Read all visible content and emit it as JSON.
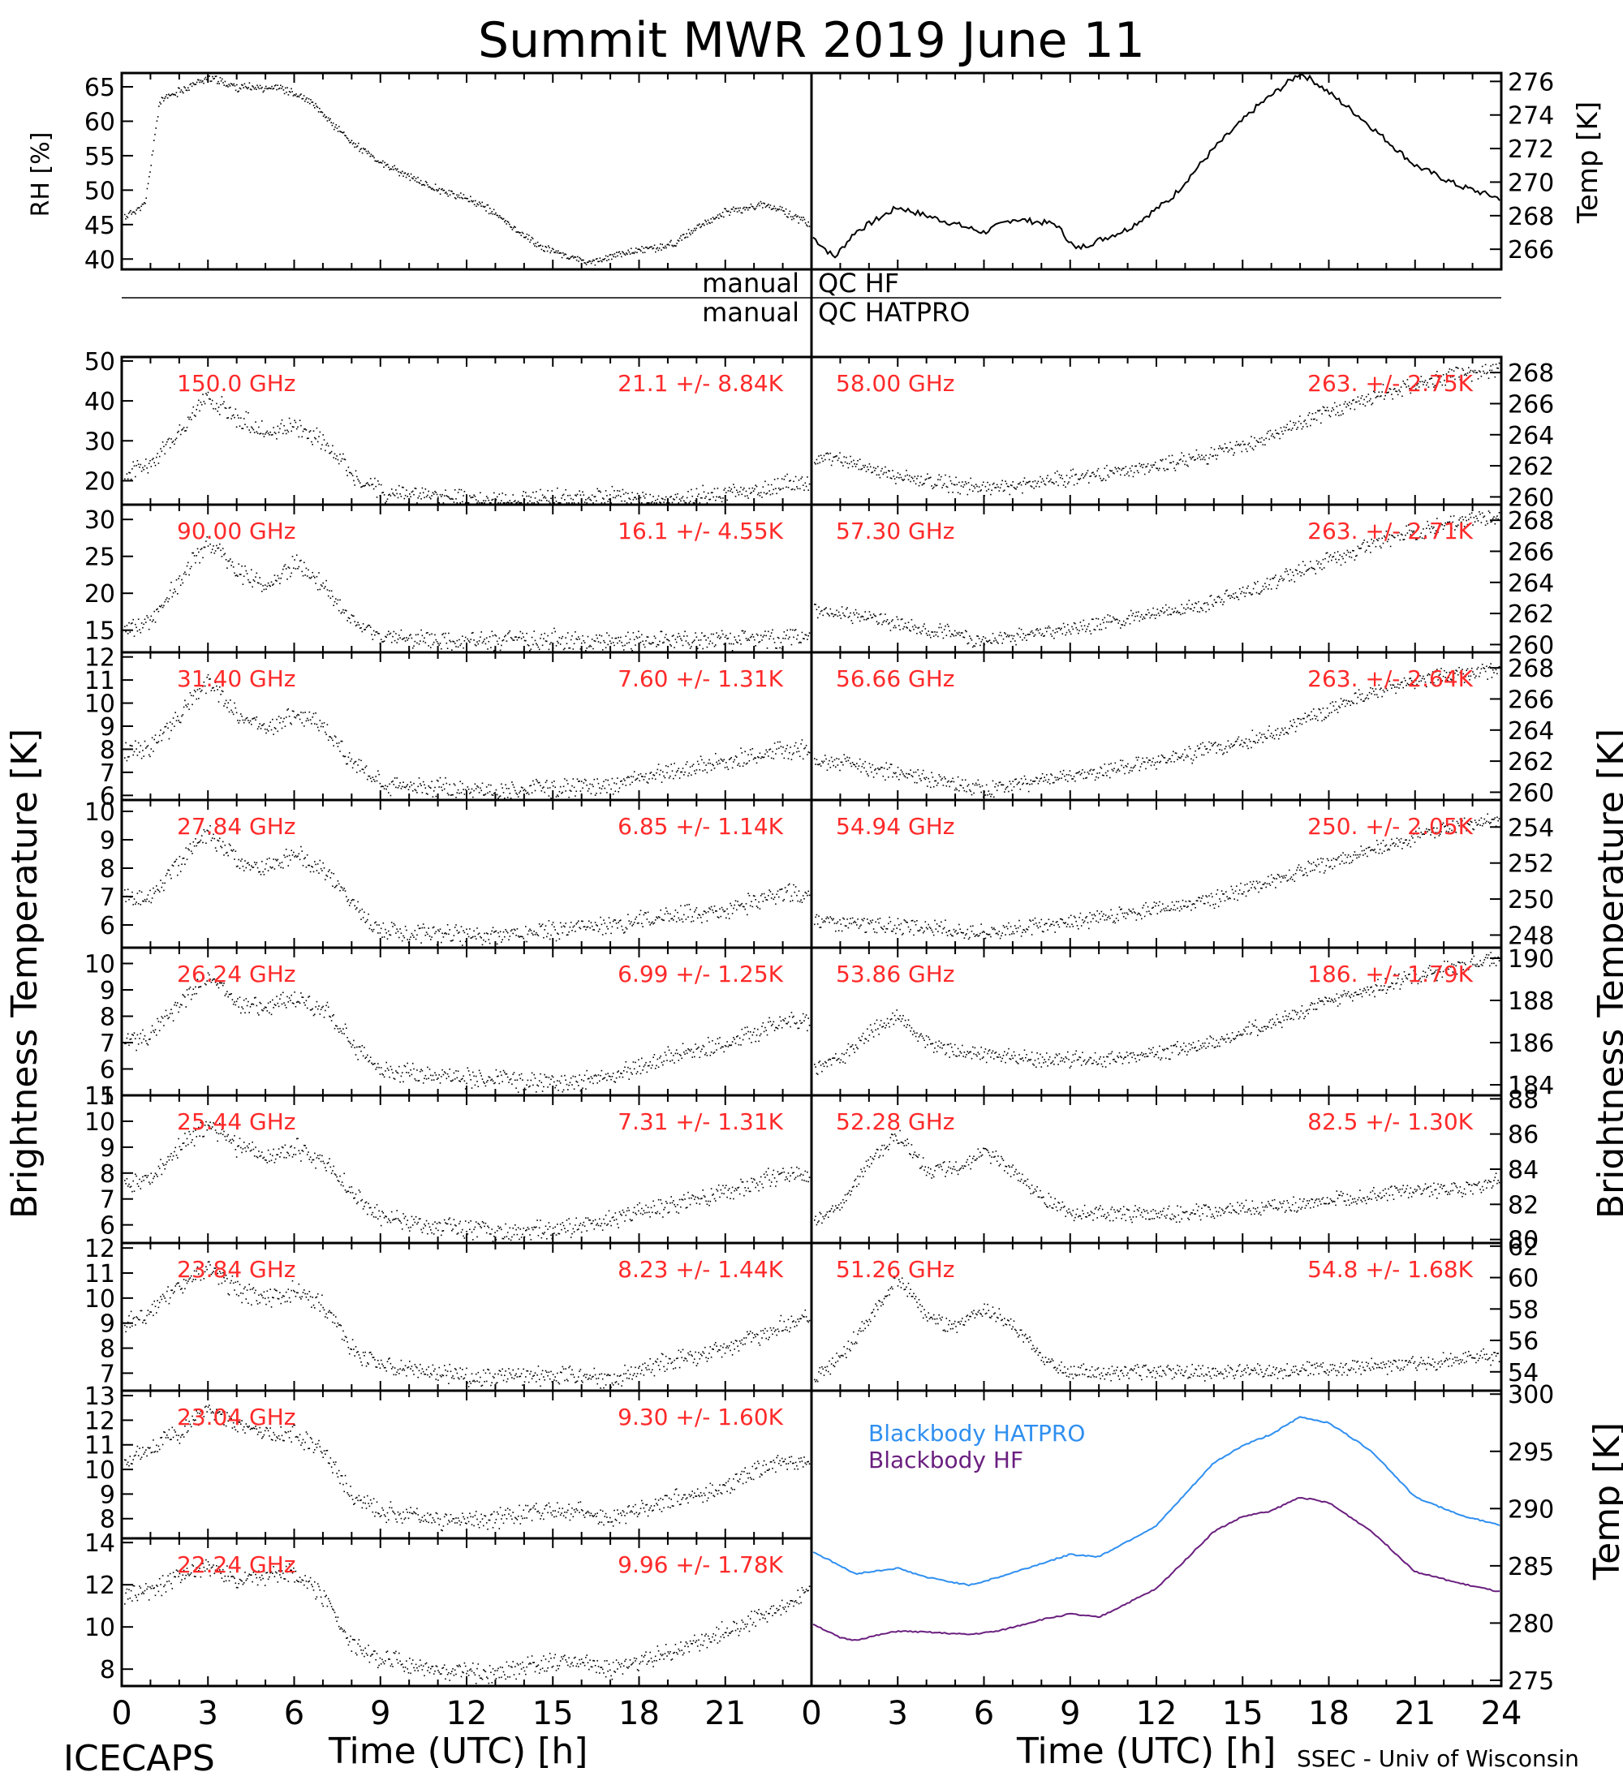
{
  "title": "Summit MWR 2019 June 11",
  "footer": {
    "left": "ICECAPS",
    "right": "SSEC - Univ of Wisconsin",
    "xlabel": "Time (UTC) [h]"
  },
  "axes": {
    "left_bt_label": "Brightness Temperature [K]",
    "right_bt_label": "Brightness Temperature [K]",
    "rh_label": "RH [%]",
    "temp_label": "Temp [K]",
    "bb_temp_label": "Temp [K]"
  },
  "qc": {
    "hf": {
      "left": "manual",
      "right": "QC HF"
    },
    "hatpro": {
      "left": "manual",
      "right": "QC HATPRO"
    }
  },
  "x_ticks": [
    "0",
    "3",
    "6",
    "9",
    "12",
    "15",
    "18",
    "21",
    "24"
  ],
  "chart_data": [
    {
      "type": "scatter",
      "id": "rh",
      "ylabel": "RH [%]",
      "ylim": [
        38.5,
        67
      ],
      "yticks": [
        40,
        45,
        50,
        55,
        60,
        65
      ],
      "x": [
        0,
        0.8,
        1.3,
        3,
        4,
        5.5,
        6.5,
        8,
        9,
        10.5,
        12.5,
        14.5,
        16.2,
        17.5,
        19,
        21,
        22.5,
        24
      ],
      "y": [
        46,
        48,
        63,
        66.5,
        65,
        65,
        63,
        57,
        54,
        51,
        48,
        42,
        39.5,
        41,
        42,
        47,
        48,
        45
      ]
    },
    {
      "type": "line",
      "id": "temp",
      "ylabel": "Temp [K]",
      "ylim": [
        264.8,
        276.5
      ],
      "yticks": [
        266,
        268,
        270,
        272,
        274,
        276
      ],
      "x": [
        0,
        0.8,
        1.5,
        3,
        5,
        6,
        7,
        8.5,
        9.2,
        11,
        12.5,
        14,
        15.5,
        17,
        17.5,
        19,
        21,
        22.5,
        24
      ],
      "y": [
        266.8,
        265.5,
        267,
        268.5,
        267.5,
        267,
        267.8,
        267.5,
        266,
        267.2,
        269,
        272,
        274.5,
        276.5,
        276,
        274,
        271,
        269.8,
        269
      ]
    },
    {
      "type": "scatter",
      "id": "f150",
      "side": "left",
      "label": "150.0 GHz",
      "stat": "21.1 +/-  8.84K",
      "ylim": [
        14,
        51
      ],
      "yticks": [
        20,
        30,
        40,
        50
      ],
      "x": [
        0,
        1,
        2,
        3,
        4,
        5,
        6,
        7,
        8,
        9,
        11,
        13,
        15,
        17,
        19,
        21,
        23,
        24
      ],
      "y": [
        22,
        24,
        33,
        42,
        36,
        32,
        34,
        30,
        22,
        17,
        16,
        15,
        16,
        16,
        15,
        17,
        19,
        20
      ]
    },
    {
      "type": "scatter",
      "id": "f90",
      "side": "left",
      "label": "90.00 GHz",
      "stat": "16.1 +/-  4.55K",
      "ylim": [
        12,
        32
      ],
      "yticks": [
        15,
        20,
        25,
        30
      ],
      "x": [
        0,
        1,
        2,
        3,
        4,
        5,
        6,
        7,
        8,
        9,
        11,
        13,
        15,
        17,
        19,
        21,
        23,
        24
      ],
      "y": [
        15.5,
        16,
        22,
        27,
        23,
        21,
        24,
        21,
        16,
        14,
        13.5,
        13.5,
        13.8,
        13.5,
        13.7,
        13.8,
        14,
        14.5
      ]
    },
    {
      "type": "scatter",
      "id": "f3140",
      "side": "left",
      "label": "31.40 GHz",
      "stat": "7.60 +/- 1.31K",
      "ylim": [
        5.8,
        12.2
      ],
      "yticks": [
        6,
        7,
        8,
        9,
        10,
        11,
        12
      ],
      "x": [
        0,
        1,
        2,
        3,
        4,
        5,
        6,
        7,
        8,
        9,
        11,
        13,
        15,
        17,
        19,
        21,
        23,
        24
      ],
      "y": [
        8,
        8,
        9.5,
        11,
        9.5,
        9,
        9.5,
        9,
        7.5,
        6.5,
        6.4,
        6.2,
        6.3,
        6.5,
        7,
        7.5,
        8,
        8
      ]
    },
    {
      "type": "scatter",
      "id": "f2784",
      "side": "left",
      "label": "27.84 GHz",
      "stat": "6.85 +/- 1.14K",
      "ylim": [
        5.2,
        10.4
      ],
      "yticks": [
        6,
        7,
        8,
        9,
        10
      ],
      "x": [
        0,
        1,
        2,
        3,
        4,
        5,
        6,
        7,
        8,
        9,
        11,
        13,
        15,
        17,
        19,
        21,
        23,
        24
      ],
      "y": [
        7,
        7,
        8.2,
        9.3,
        8.3,
        8,
        8.5,
        8,
        6.8,
        5.8,
        5.7,
        5.6,
        5.8,
        6,
        6.3,
        6.5,
        7.2,
        7
      ]
    },
    {
      "type": "scatter",
      "id": "f2624",
      "side": "left",
      "label": "26.24 GHz",
      "stat": "6.99 +/- 1.25K",
      "ylim": [
        5,
        10.6
      ],
      "yticks": [
        5,
        6,
        7,
        8,
        9,
        10
      ],
      "x": [
        0,
        1,
        2,
        3,
        4,
        5,
        6,
        7,
        8,
        9,
        11,
        13,
        15,
        17,
        19,
        21,
        23,
        24
      ],
      "y": [
        7,
        7.3,
        8.5,
        9.6,
        8.6,
        8.3,
        8.7,
        8.3,
        7,
        6,
        5.8,
        5.6,
        5.5,
        5.7,
        6.5,
        7,
        7.8,
        7.8
      ]
    },
    {
      "type": "scatter",
      "id": "f2544",
      "side": "left",
      "label": "25.44 GHz",
      "stat": "7.31 +/- 1.31K",
      "ylim": [
        5.3,
        11
      ],
      "yticks": [
        6,
        7,
        8,
        9,
        10,
        11
      ],
      "x": [
        0,
        1,
        2,
        3,
        4,
        5,
        6,
        7,
        8,
        9,
        11,
        13,
        15,
        17,
        19,
        21,
        23,
        24
      ],
      "y": [
        7.5,
        7.8,
        9,
        10,
        9,
        8.6,
        9,
        8.5,
        7.3,
        6.3,
        6,
        5.8,
        5.8,
        6.2,
        6.8,
        7.3,
        8,
        7.8
      ]
    },
    {
      "type": "scatter",
      "id": "f2384",
      "side": "left",
      "label": "23.84 GHz",
      "stat": "8.23 +/- 1.44K",
      "ylim": [
        6.3,
        12.2
      ],
      "yticks": [
        7,
        8,
        9,
        10,
        11,
        12
      ],
      "x": [
        0,
        1,
        2,
        3,
        4,
        5,
        6,
        7,
        8,
        9,
        11,
        13,
        15,
        17,
        19,
        21,
        23,
        24
      ],
      "y": [
        9,
        9.5,
        10.5,
        11.2,
        10.3,
        10,
        10.3,
        9.8,
        8,
        7.3,
        7,
        6.8,
        7,
        6.8,
        7.5,
        8,
        9,
        9.3
      ]
    },
    {
      "type": "scatter",
      "id": "f2304",
      "side": "left",
      "label": "23.04 GHz",
      "stat": "9.30 +/- 1.60K",
      "ylim": [
        7.2,
        13.2
      ],
      "yticks": [
        8,
        9,
        10,
        11,
        12,
        13
      ],
      "x": [
        0,
        1,
        2,
        3,
        4,
        5,
        6,
        7,
        8,
        9,
        11,
        13,
        15,
        17,
        19,
        21,
        23,
        24
      ],
      "y": [
        10.2,
        11,
        11.5,
        12.5,
        11.8,
        11.5,
        11.5,
        10.8,
        9,
        8.3,
        8,
        8,
        8.5,
        8,
        8.7,
        9.3,
        10.5,
        10.2
      ]
    },
    {
      "type": "scatter",
      "id": "f2224",
      "side": "left",
      "label": "22.24 GHz",
      "stat": "9.96 +/- 1.78K",
      "ylim": [
        7.2,
        14.2
      ],
      "yticks": [
        8,
        10,
        12,
        14
      ],
      "x": [
        0,
        1,
        2,
        3,
        4,
        5,
        6,
        7,
        8,
        9,
        11,
        13,
        15,
        17,
        19,
        21,
        23,
        24
      ],
      "y": [
        11.3,
        11.8,
        12.4,
        13,
        12.2,
        12.5,
        12.5,
        11.5,
        9.2,
        8.5,
        8,
        7.8,
        8.5,
        8,
        8.8,
        9.8,
        11,
        11.8
      ]
    },
    {
      "type": "scatter",
      "id": "f5800",
      "side": "right",
      "label": "58.00 GHz",
      "stat": "263. +/- 2.75K",
      "ylim": [
        259.5,
        269
      ],
      "yticks": [
        260,
        262,
        264,
        266,
        268
      ],
      "x": [
        0,
        1,
        3,
        5,
        6,
        8,
        10,
        12,
        14,
        16,
        18,
        20,
        22,
        24
      ],
      "y": [
        262.5,
        262.5,
        261.3,
        260.8,
        260.5,
        261,
        261.5,
        262,
        262.8,
        264,
        265.5,
        266.8,
        267.8,
        268.3
      ]
    },
    {
      "type": "scatter",
      "id": "f5730",
      "side": "right",
      "label": "57.30 GHz",
      "stat": "263. +/- 2.71K",
      "ylim": [
        259.5,
        269
      ],
      "yticks": [
        260,
        262,
        264,
        266,
        268
      ],
      "x": [
        0,
        1,
        3,
        5,
        6,
        8,
        10,
        12,
        14,
        16,
        18,
        20,
        22,
        24
      ],
      "y": [
        262.3,
        262,
        261.3,
        260.7,
        260.3,
        260.8,
        261.3,
        262,
        262.8,
        264,
        265.5,
        266.8,
        267.8,
        268.3
      ]
    },
    {
      "type": "scatter",
      "id": "f5666",
      "side": "right",
      "label": "56.66 GHz",
      "stat": "263. +/- 2.64K",
      "ylim": [
        259.5,
        269
      ],
      "yticks": [
        260,
        262,
        264,
        266,
        268
      ],
      "x": [
        0,
        1,
        3,
        5,
        6,
        8,
        10,
        12,
        14,
        16,
        18,
        20,
        22,
        24
      ],
      "y": [
        262,
        262,
        261.2,
        260.5,
        260.2,
        260.8,
        261.3,
        262,
        262.8,
        263.8,
        265.3,
        266.8,
        267.5,
        268
      ]
    },
    {
      "type": "scatter",
      "id": "f5494",
      "side": "right",
      "label": "54.94 GHz",
      "stat": "250. +/- 2.05K",
      "ylim": [
        247.3,
        255.5
      ],
      "yticks": [
        248,
        250,
        252,
        254
      ],
      "x": [
        0,
        1,
        3,
        5,
        6,
        8,
        10,
        12,
        14,
        16,
        18,
        20,
        22,
        24
      ],
      "y": [
        249,
        248.7,
        248.5,
        248.3,
        248.2,
        248.5,
        249,
        249.5,
        250,
        251,
        252,
        253,
        254,
        254.5
      ]
    },
    {
      "type": "scatter",
      "id": "f5386",
      "side": "right",
      "label": "53.86 GHz",
      "stat": "186. +/- 1.79K",
      "ylim": [
        183.5,
        190.5
      ],
      "yticks": [
        184,
        186,
        188,
        190
      ],
      "x": [
        0,
        1,
        2,
        3,
        4,
        5,
        6,
        8,
        10,
        12,
        14,
        16,
        18,
        20,
        22,
        24
      ],
      "y": [
        184.8,
        185.3,
        186.5,
        187.3,
        186,
        185.5,
        185.5,
        185.2,
        185.2,
        185.5,
        186,
        187,
        188,
        188.8,
        189.5,
        190
      ]
    },
    {
      "type": "scatter",
      "id": "f5228",
      "side": "right",
      "label": "52.28 GHz",
      "stat": "82.5 +/- 1.30K",
      "ylim": [
        79.8,
        88.2
      ],
      "yticks": [
        80,
        82,
        84,
        86,
        88
      ],
      "x": [
        0,
        1,
        2,
        3,
        4,
        5,
        6,
        7,
        8,
        9,
        11,
        13,
        15,
        17,
        19,
        21,
        23,
        24
      ],
      "y": [
        81,
        82,
        84.5,
        86,
        84,
        84,
        85,
        84,
        82.5,
        81.5,
        81.5,
        81.5,
        81.8,
        82,
        82.5,
        82.8,
        83,
        83.5
      ]
    },
    {
      "type": "scatter",
      "id": "f5126",
      "side": "right",
      "label": "51.26 GHz",
      "stat": "54.8 +/- 1.68K",
      "ylim": [
        52.8,
        62.2
      ],
      "yticks": [
        54,
        56,
        58,
        60,
        62
      ],
      "x": [
        0,
        1,
        2,
        3,
        4,
        5,
        6,
        7,
        8,
        9,
        11,
        13,
        15,
        17,
        19,
        21,
        23,
        24
      ],
      "y": [
        53.5,
        55,
        57.5,
        60,
        57.5,
        57,
        58,
        57,
        55,
        54,
        54,
        54,
        54,
        54.2,
        54.3,
        54.5,
        55,
        55
      ]
    },
    {
      "type": "line",
      "id": "blackbody",
      "ylabel": "Temp [K]",
      "ylim": [
        274.5,
        300.3
      ],
      "yticks": [
        275,
        280,
        285,
        290,
        295,
        300
      ],
      "series": [
        {
          "name": "Blackbody HATPRO",
          "color": "#2f8ff0",
          "x": [
            0,
            1,
            1.5,
            3,
            4,
            5.5,
            6.5,
            8,
            9,
            10,
            12,
            14,
            15,
            16,
            17,
            18,
            19.5,
            21,
            22.5,
            24
          ],
          "y": [
            286.3,
            285,
            284.3,
            284.8,
            284,
            283.3,
            284,
            285.2,
            286,
            285.8,
            288.5,
            294,
            295.5,
            296.5,
            298,
            297.5,
            295,
            291,
            289.5,
            288.5
          ]
        },
        {
          "name": "Blackbody HF",
          "color": "#6a1f7f",
          "x": [
            0,
            1,
            1.5,
            3,
            4,
            5.5,
            6.5,
            8,
            9,
            10,
            12,
            14,
            15,
            16,
            17,
            18,
            19.5,
            21,
            22.5,
            24
          ],
          "y": [
            280,
            278.7,
            278.5,
            279.3,
            279.2,
            279,
            279.3,
            280.3,
            280.8,
            280.5,
            283,
            288,
            289.3,
            289.8,
            291,
            290.5,
            288,
            284.5,
            283.5,
            282.7
          ]
        }
      ]
    }
  ]
}
